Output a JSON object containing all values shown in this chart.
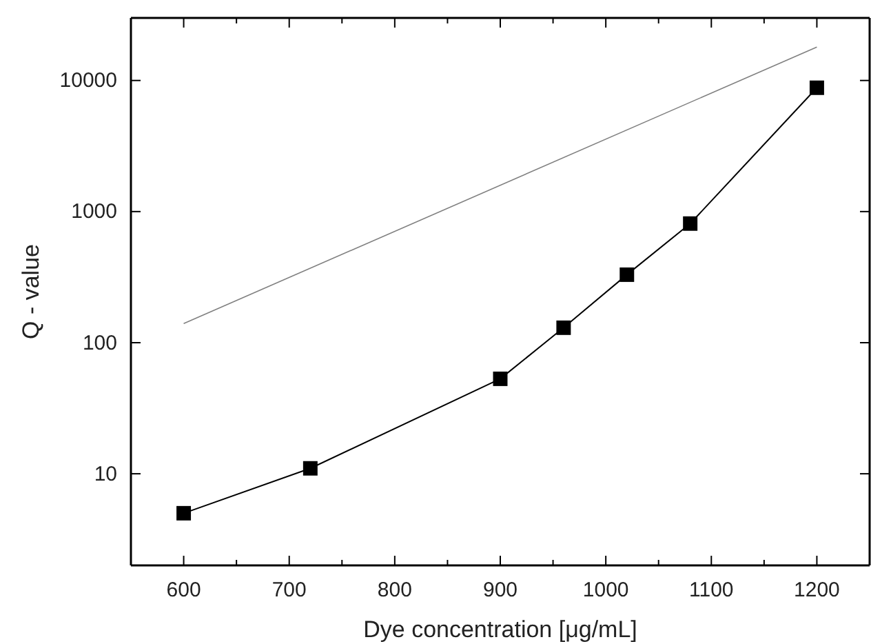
{
  "chart_data": {
    "type": "line",
    "xlabel": "Dye concentration [μg/mL]",
    "ylabel": "Q - value",
    "log": "y",
    "xlim": [
      550,
      1250
    ],
    "xticks": [
      600,
      700,
      800,
      900,
      1000,
      1100,
      1200
    ],
    "ylim": [
      2,
      30000
    ],
    "yticks": [
      10,
      100,
      1000,
      10000
    ],
    "marker": "square",
    "series": [
      {
        "color": "#000000",
        "x": [
          600,
          720,
          900,
          960,
          1020,
          1080,
          1200
        ],
        "values": [
          5,
          11,
          53,
          130,
          330,
          810,
          8800
        ]
      },
      {
        "color": "#808080",
        "marker": "none",
        "x": [
          600,
          1200
        ],
        "values": [
          140,
          18000
        ]
      }
    ]
  }
}
